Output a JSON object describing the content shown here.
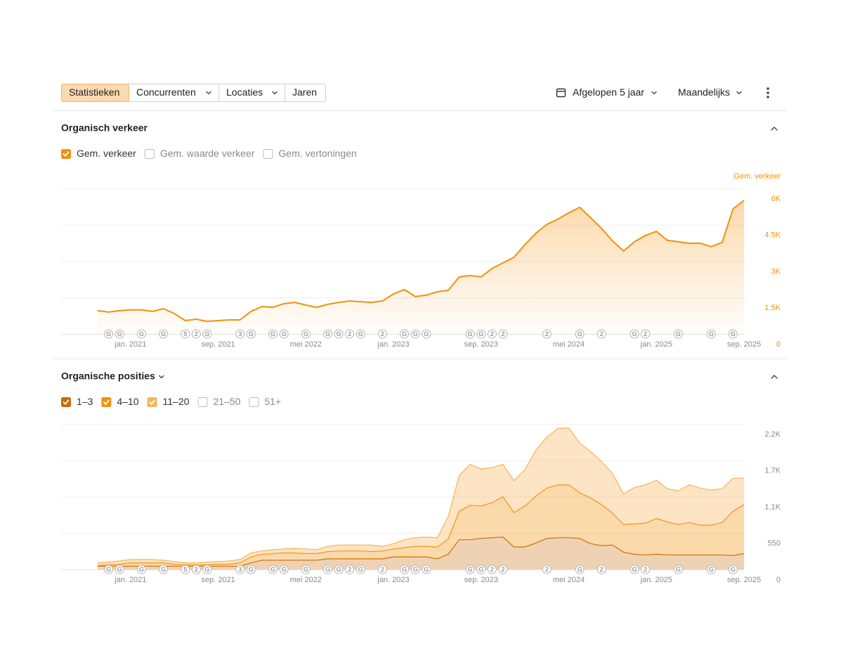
{
  "toolbar": {
    "tabs": [
      "Statistieken",
      "Concurrenten",
      "Locaties",
      "Jaren"
    ],
    "active_tab": 0,
    "dropdown": [
      false,
      true,
      true,
      false
    ],
    "period": "Afgelopen 5 jaar",
    "interval": "Maandelijks"
  },
  "chart_data": [
    {
      "type": "area",
      "title": "Organisch verkeer",
      "ylabel": "Gem. verkeer",
      "categories": [
        null,
        null,
        null,
        "jan. 2021",
        null,
        null,
        null,
        null,
        null,
        null,
        null,
        "sep. 2021",
        null,
        null,
        null,
        null,
        null,
        null,
        null,
        "mei 2022",
        null,
        null,
        null,
        null,
        null,
        null,
        null,
        "jan. 2023",
        null,
        null,
        null,
        null,
        null,
        null,
        null,
        "sep. 2023",
        null,
        null,
        null,
        null,
        null,
        null,
        null,
        "mei 2024",
        null,
        null,
        null,
        null,
        null,
        null,
        null,
        "jan. 2025",
        null,
        null,
        null,
        null,
        null,
        null,
        null,
        "sep. 2025"
      ],
      "markers": [
        null,
        "G",
        "G",
        null,
        "G",
        null,
        "G",
        null,
        "5",
        "2",
        "G",
        null,
        null,
        "3",
        "G",
        null,
        "G",
        "G",
        null,
        "G",
        null,
        "G",
        "G",
        "2",
        "G",
        null,
        "2",
        null,
        "G",
        "G",
        "G",
        null,
        null,
        null,
        "G",
        "G",
        "2",
        "2",
        null,
        null,
        null,
        "2",
        null,
        null,
        "G",
        null,
        "2",
        null,
        null,
        "G",
        "2",
        null,
        null,
        "G",
        null,
        null,
        "G",
        null,
        "G",
        null
      ],
      "series": [
        {
          "name": "Gem. verkeer",
          "color": "#f0920c",
          "checked": true,
          "values": [
            960,
            900,
            960,
            990,
            990,
            930,
            1040,
            840,
            550,
            610,
            520,
            550,
            580,
            580,
            930,
            1130,
            1100,
            1250,
            1300,
            1190,
            1100,
            1220,
            1300,
            1360,
            1330,
            1300,
            1360,
            1650,
            1830,
            1540,
            1600,
            1740,
            1800,
            2350,
            2410,
            2350,
            2700,
            2930,
            3160,
            3680,
            4150,
            4520,
            4730,
            4990,
            5220,
            4790,
            4350,
            3830,
            3420,
            3800,
            4060,
            4230,
            3860,
            3800,
            3740,
            3740,
            3600,
            3770,
            5160,
            5510
          ]
        }
      ],
      "unchecked_series": [
        {
          "name": "Gem. waarde verkeer"
        },
        {
          "name": "Gem. vertoningen"
        }
      ],
      "ylim": [
        0,
        6000
      ],
      "yticks": [
        0,
        {
          "value": 1500,
          "label": "1.5K"
        },
        {
          "value": 3000,
          "label": "3K"
        },
        {
          "value": 4500,
          "label": "4.5K"
        },
        {
          "value": 6000,
          "label": "6K"
        }
      ],
      "tick_color": "#f0920c",
      "grid": true
    },
    {
      "type": "stacked_area",
      "title": "Organische posities",
      "title_menu": true,
      "categories": [
        null,
        null,
        null,
        "jan. 2021",
        null,
        null,
        null,
        null,
        null,
        null,
        null,
        "sep. 2021",
        null,
        null,
        null,
        null,
        null,
        null,
        null,
        "mei 2022",
        null,
        null,
        null,
        null,
        null,
        null,
        null,
        "jan. 2023",
        null,
        null,
        null,
        null,
        null,
        null,
        null,
        "sep. 2023",
        null,
        null,
        null,
        null,
        null,
        null,
        null,
        "mei 2024",
        null,
        null,
        null,
        null,
        null,
        null,
        null,
        "jan. 2025",
        null,
        null,
        null,
        null,
        null,
        null,
        null,
        "sep. 2025"
      ],
      "markers": [
        null,
        "G",
        "G",
        null,
        "G",
        null,
        "G",
        null,
        "5",
        "2",
        "G",
        null,
        null,
        "3",
        "G",
        null,
        "G",
        "G",
        null,
        "G",
        null,
        "G",
        "G",
        "2",
        "G",
        null,
        "2",
        null,
        "G",
        "G",
        "G",
        null,
        null,
        null,
        "G",
        "G",
        "2",
        "2",
        null,
        null,
        null,
        "2",
        null,
        null,
        "G",
        null,
        "2",
        null,
        null,
        "G",
        "2",
        null,
        null,
        "G",
        null,
        null,
        "G",
        null,
        "G",
        null
      ],
      "series": [
        {
          "name": "1–3",
          "color": "#c96a06",
          "checked": true,
          "values": [
            50,
            50,
            50,
            50,
            50,
            50,
            50,
            50,
            50,
            50,
            50,
            50,
            50,
            50,
            100,
            140,
            140,
            140,
            140,
            140,
            140,
            160,
            160,
            160,
            160,
            160,
            160,
            190,
            190,
            190,
            190,
            160,
            230,
            450,
            450,
            470,
            480,
            490,
            340,
            340,
            400,
            470,
            480,
            480,
            470,
            390,
            360,
            370,
            260,
            230,
            220,
            230,
            220,
            220,
            220,
            220,
            220,
            220,
            210,
            240
          ]
        },
        {
          "name": "4–10",
          "color": "#f0920c",
          "checked": true,
          "values": [
            10,
            20,
            30,
            50,
            50,
            50,
            50,
            30,
            20,
            20,
            20,
            30,
            30,
            50,
            90,
            90,
            100,
            110,
            110,
            100,
            100,
            110,
            120,
            120,
            120,
            110,
            120,
            120,
            140,
            160,
            160,
            180,
            230,
            430,
            520,
            490,
            530,
            610,
            520,
            620,
            710,
            760,
            800,
            800,
            690,
            690,
            620,
            480,
            420,
            460,
            480,
            540,
            500,
            460,
            490,
            450,
            450,
            490,
            670,
            740
          ]
        },
        {
          "name": "11–20",
          "color": "#f7b356",
          "checked": true,
          "values": [
            40,
            40,
            50,
            50,
            50,
            50,
            40,
            40,
            30,
            30,
            40,
            40,
            50,
            50,
            60,
            50,
            60,
            60,
            70,
            70,
            60,
            80,
            90,
            90,
            90,
            100,
            70,
            80,
            120,
            130,
            140,
            140,
            340,
            540,
            620,
            560,
            530,
            490,
            480,
            550,
            690,
            770,
            850,
            860,
            750,
            700,
            650,
            600,
            460,
            550,
            580,
            580,
            500,
            510,
            570,
            560,
            530,
            510,
            500,
            400
          ]
        }
      ],
      "unchecked_series": [
        {
          "name": "21–50"
        },
        {
          "name": "51+"
        }
      ],
      "ylim": [
        0,
        2200
      ],
      "yticks": [
        0,
        550,
        {
          "value": 1100,
          "label": "1.1K"
        },
        {
          "value": 1650,
          "label": "1.7K"
        },
        {
          "value": 2200,
          "label": "2.2K"
        }
      ],
      "tick_color": "#8a8a8a",
      "grid": true
    }
  ]
}
